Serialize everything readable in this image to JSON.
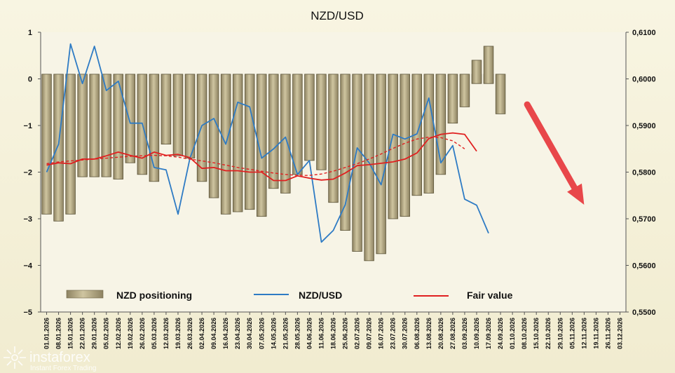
{
  "chart_data": {
    "type": "bar",
    "title": "NZD/USD",
    "xlabel": "",
    "ylabel": "",
    "grid": false,
    "legend_position": "bottom",
    "ylim_left": [
      -5,
      1
    ],
    "ylim_right": [
      0.55,
      0.61
    ],
    "left_ticks": [
      "1",
      "0",
      "−1",
      "−2",
      "−3",
      "−4",
      "−5"
    ],
    "right_ticks": [
      "0,6100",
      "0,6000",
      "0,5900",
      "0,5800",
      "0,5700",
      "0,5600",
      "0,5500"
    ],
    "categories": [
      "01.01.2026",
      "08.01.2026",
      "15.01.2026",
      "22.01.2026",
      "29.01.2026",
      "05.02.2026",
      "12.02.2026",
      "19.02.2026",
      "26.02.2026",
      "05.03.2026",
      "12.03.2026",
      "19.03.2026",
      "26.03.2026",
      "02.04.2026",
      "09.04.2026",
      "16.04.2026",
      "23.04.2026",
      "30.04.2026",
      "07.05.2026",
      "14.05.2026",
      "21.05.2026",
      "28.05.2026",
      "04.06.2026",
      "11.06.2026",
      "18.06.2026",
      "25.06.2026",
      "02.07.2026",
      "09.07.2026",
      "16.07.2026",
      "23.07.2026",
      "30.07.2026",
      "06.08.2026",
      "13.08.2026",
      "20.08.2026",
      "27.08.2026",
      "03.09.2026",
      "10.09.2026",
      "17.09.2026",
      "24.09.2026",
      "01.10.2026",
      "08.10.2026",
      "15.10.2026",
      "22.10.2026",
      "29.10.2026",
      "05.11.2026",
      "12.11.2026",
      "19.11.2026",
      "26.11.2026",
      "03.12.2026"
    ],
    "series": [
      {
        "name": "NZD positioning",
        "axis": "left",
        "color": "#b8ad86",
        "values": [
          -2.9,
          -3.05,
          -2.9,
          -2.1,
          -2.1,
          -2.1,
          -2.15,
          -1.8,
          -2.05,
          -2.2,
          -1.4,
          -1.65,
          -1.7,
          -2.2,
          -2.55,
          -2.9,
          -2.85,
          -2.8,
          -2.95,
          -2.35,
          -2.45,
          -2.05,
          -1.75,
          -1.95,
          -2.65,
          -3.25,
          -3.7,
          -3.9,
          -3.75,
          -3.0,
          -2.95,
          -2.5,
          -2.45,
          -2.05,
          -0.95,
          -0.6,
          -0.1,
          -0.1,
          -0.75,
          null,
          null,
          null,
          null,
          null,
          null,
          null,
          null,
          null,
          null
        ],
        "positive_values": [
          null,
          null,
          null,
          null,
          null,
          null,
          null,
          null,
          null,
          null,
          null,
          null,
          null,
          null,
          null,
          null,
          null,
          null,
          null,
          null,
          null,
          null,
          null,
          null,
          null,
          null,
          null,
          null,
          null,
          null,
          null,
          null,
          null,
          null,
          null,
          null,
          0.4,
          0.7,
          null,
          null,
          null,
          null,
          null,
          null,
          null,
          null,
          null,
          null,
          null
        ]
      },
      {
        "name": "NZD/USD",
        "axis": "right",
        "color": "#2e7bc4",
        "values": [
          0.58,
          0.586,
          0.6075,
          0.599,
          0.607,
          0.5975,
          0.5995,
          0.5905,
          0.5905,
          0.581,
          0.5805,
          0.571,
          0.583,
          0.59,
          0.5915,
          0.586,
          0.595,
          0.594,
          0.583,
          0.585,
          0.5875,
          0.5795,
          0.5825,
          0.565,
          0.5675,
          0.573,
          0.5852,
          0.582,
          0.5773,
          0.5881,
          0.5871,
          0.5882,
          0.5959,
          0.582,
          0.5857,
          0.5742,
          0.5729,
          0.5669,
          null,
          null,
          null,
          null,
          null,
          null,
          null,
          null,
          null,
          null,
          null
        ]
      },
      {
        "name": "Fair value",
        "axis": "right",
        "color": "#e02020",
        "values": [
          0.5815,
          0.582,
          0.5818,
          0.5828,
          0.5828,
          0.5835,
          0.5843,
          0.5836,
          0.583,
          0.5843,
          0.5836,
          0.5838,
          0.5831,
          0.5808,
          0.581,
          0.5803,
          0.5803,
          0.58,
          0.58,
          0.5782,
          0.5782,
          0.5792,
          0.5787,
          0.5783,
          0.5785,
          0.5798,
          0.5814,
          0.5816,
          0.5819,
          0.5822,
          0.5828,
          0.5841,
          0.5872,
          0.5881,
          0.5884,
          0.5881,
          0.5845,
          null,
          null,
          null,
          null,
          null,
          null,
          null,
          null,
          null,
          null,
          null,
          null
        ]
      },
      {
        "name": "Fair value trend",
        "axis": "right",
        "color": "#e02020",
        "dashed": true,
        "values": [
          0.5818,
          0.5822,
          0.5824,
          0.5826,
          0.5828,
          0.583,
          0.5832,
          0.5834,
          0.5835,
          0.5836,
          0.5835,
          0.5832,
          0.5828,
          0.5824,
          0.582,
          0.5815,
          0.581,
          0.5806,
          0.5802,
          0.5798,
          0.5795,
          0.5793,
          0.5793,
          0.5796,
          0.5802,
          0.581,
          0.5818,
          0.5828,
          0.5839,
          0.5851,
          0.5862,
          0.5871,
          0.5875,
          0.5874,
          0.5867,
          0.585,
          null,
          null,
          null,
          null,
          null,
          null,
          null,
          null,
          null,
          null,
          null,
          null,
          null
        ]
      }
    ],
    "annotations": [
      {
        "type": "arrow",
        "color": "#e8474a",
        "direction": "down-right",
        "from_category": "08.10.2026",
        "to_category": "12.11.2026"
      }
    ]
  },
  "legend": [
    {
      "label": "NZD positioning",
      "swatch": "bar"
    },
    {
      "label": "NZD/USD",
      "swatch": "line-blue"
    },
    {
      "label": "Fair value",
      "swatch": "line-red"
    }
  ],
  "brand": {
    "name": "instaforex",
    "tagline": "Instant Forex Trading"
  }
}
